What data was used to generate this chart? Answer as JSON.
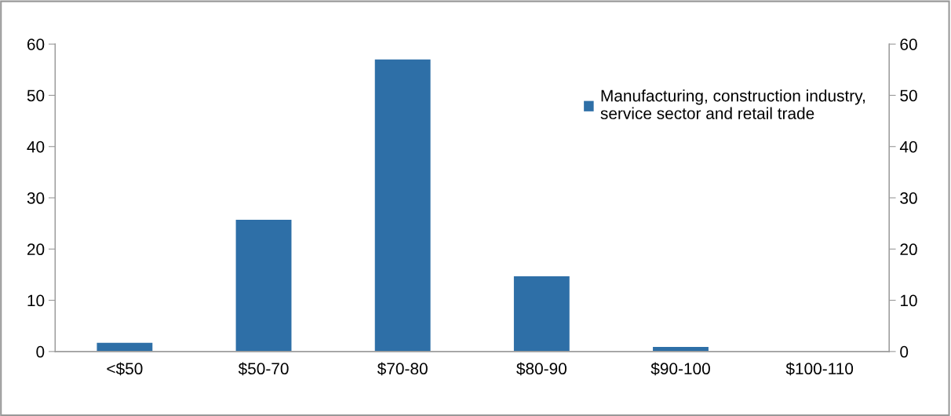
{
  "chart_data": {
    "type": "bar",
    "categories": [
      "<$50",
      "$50-70",
      "$70-80",
      "$80-90",
      "$90-100",
      "$100-110"
    ],
    "series": [
      {
        "name": "Manufacturing, construction industry,\nservice sector and retail trade",
        "color": "#2e6fa7",
        "values": [
          1.7,
          25.7,
          57,
          14.7,
          0.9,
          0
        ]
      }
    ],
    "ylim": [
      0,
      60
    ],
    "yticks": [
      0,
      10,
      20,
      30,
      40,
      50,
      60
    ],
    "y2lim": [
      0,
      60
    ],
    "y2ticks": [
      0,
      10,
      20,
      30,
      40,
      50,
      60
    ],
    "grid": false,
    "legend": "top right"
  }
}
